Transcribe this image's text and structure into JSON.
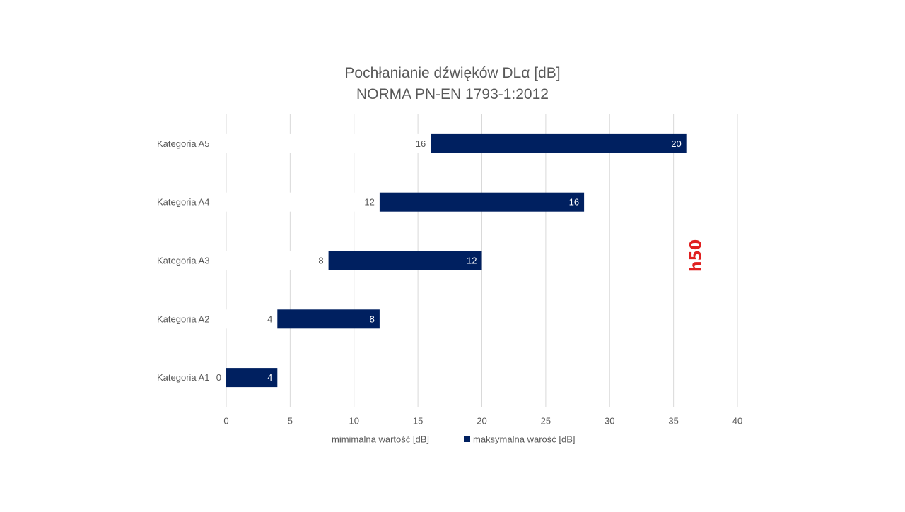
{
  "chart_data": {
    "type": "bar",
    "orientation": "horizontal",
    "stacked": true,
    "title": [
      "Pochłanianie  dźwięków  DLα [dB]",
      "NORMA PN-EN 1793-1:2012"
    ],
    "categories": [
      "Kategoria A1",
      "Kategoria A2",
      "Kategoria A3",
      "Kategoria A4",
      "Kategoria A5"
    ],
    "series": [
      {
        "name": "mimimalna wartość [dB]",
        "values": [
          0,
          4,
          8,
          12,
          16
        ],
        "color": "#ffffff"
      },
      {
        "name": "maksymalna warość [dB]",
        "values": [
          4,
          8,
          12,
          16,
          20
        ],
        "color": "#002060"
      }
    ],
    "xlim": [
      0,
      40
    ],
    "xticks": [
      0,
      5,
      10,
      15,
      20,
      25,
      30,
      35,
      40
    ],
    "grid": true,
    "legend": "bottom",
    "colors": {
      "bar": "#002060",
      "grid": "#d9d9d9",
      "text": "#595959",
      "logo": "#e02020"
    }
  },
  "logo_text": "h50"
}
